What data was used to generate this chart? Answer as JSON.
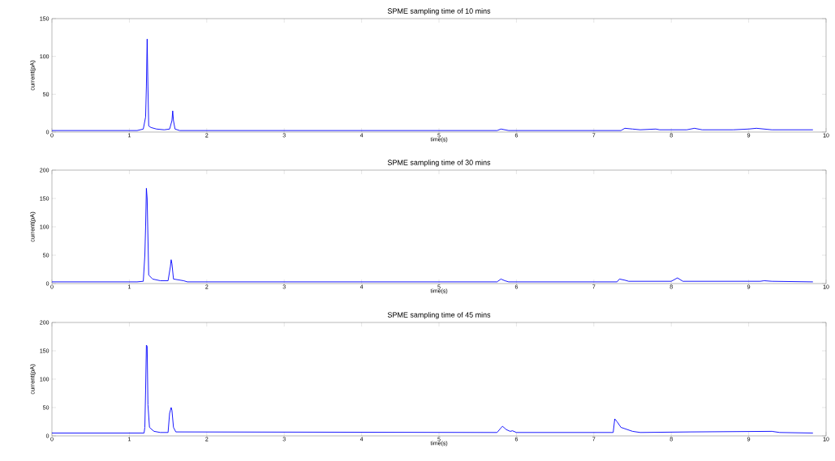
{
  "chart_data": [
    {
      "type": "line",
      "title": "SPME sampling time of 10 mins",
      "xlabel": "time(s)",
      "ylabel": "current(pA)",
      "color": "#0000ff",
      "x": [
        0,
        1.1,
        1.18,
        1.21,
        1.22,
        1.23,
        1.24,
        1.25,
        1.28,
        1.35,
        1.45,
        1.52,
        1.55,
        1.56,
        1.57,
        1.59,
        1.65,
        5.75,
        5.8,
        5.9,
        7.35,
        7.4,
        7.5,
        7.6,
        7.8,
        7.85,
        7.9,
        8.2,
        8.3,
        8.4,
        8.8,
        9.0,
        9.1,
        9.2,
        9.3,
        9.83
      ],
      "values": [
        2,
        2,
        4,
        20,
        60,
        123,
        60,
        8,
        6,
        4,
        3,
        4,
        15,
        28,
        15,
        4,
        2,
        2,
        4,
        2,
        2,
        5,
        4,
        3,
        4,
        3,
        3,
        3,
        5,
        3,
        3,
        4,
        5,
        4,
        3,
        3
      ],
      "xlim": [
        0,
        10
      ],
      "ylim": [
        0,
        150
      ],
      "xticks": [
        0,
        1,
        2,
        3,
        4,
        5,
        6,
        7,
        8,
        9,
        10
      ],
      "yticks": [
        0,
        50,
        100,
        150
      ]
    },
    {
      "type": "line",
      "title": "SPME sampling time of 30 mins",
      "xlabel": "time(s)",
      "ylabel": "current(pA)",
      "color": "#0000ff",
      "x": [
        0,
        1.1,
        1.18,
        1.2,
        1.21,
        1.22,
        1.23,
        1.25,
        1.3,
        1.4,
        1.5,
        1.53,
        1.54,
        1.55,
        1.57,
        1.7,
        1.75,
        5.75,
        5.8,
        5.85,
        5.9,
        7.3,
        7.33,
        7.4,
        7.45,
        8.0,
        8.08,
        8.15,
        9.15,
        9.2,
        9.3,
        9.83
      ],
      "values": [
        3,
        3,
        4,
        50,
        100,
        168,
        150,
        15,
        8,
        5,
        5,
        30,
        42,
        35,
        8,
        5,
        3,
        3,
        8,
        5,
        3,
        3,
        8,
        6,
        4,
        4,
        10,
        4,
        4,
        5,
        4,
        3
      ],
      "xlim": [
        0,
        10
      ],
      "ylim": [
        0,
        200
      ],
      "xticks": [
        0,
        1,
        2,
        3,
        4,
        5,
        6,
        7,
        8,
        9,
        10
      ],
      "yticks": [
        0,
        50,
        100,
        150,
        200
      ]
    },
    {
      "type": "line",
      "title": "SPME sampling time of 45 mins",
      "xlabel": "time(s)",
      "ylabel": "current(pA)",
      "color": "#0000ff",
      "x": [
        0,
        1.19,
        1.2,
        1.21,
        1.22,
        1.23,
        1.24,
        1.26,
        1.3,
        1.32,
        1.4,
        1.5,
        1.52,
        1.54,
        1.55,
        1.57,
        1.6,
        5.75,
        5.8,
        5.82,
        5.87,
        5.92,
        5.95,
        6.0,
        7.25,
        7.27,
        7.3,
        7.35,
        7.5,
        7.6,
        8.25,
        9.3,
        9.4,
        9.83
      ],
      "values": [
        5,
        5,
        15,
        80,
        160,
        158,
        55,
        15,
        10,
        8,
        6,
        6,
        40,
        50,
        45,
        15,
        7,
        6,
        14,
        17,
        11,
        8,
        9,
        6,
        6,
        30,
        25,
        15,
        8,
        6,
        7,
        8,
        6,
        5
      ],
      "xlim": [
        0,
        10
      ],
      "ylim": [
        0,
        200
      ],
      "xticks": [
        0,
        1,
        2,
        3,
        4,
        5,
        6,
        7,
        8,
        9,
        10
      ],
      "yticks": [
        0,
        50,
        100,
        150,
        200
      ]
    }
  ]
}
